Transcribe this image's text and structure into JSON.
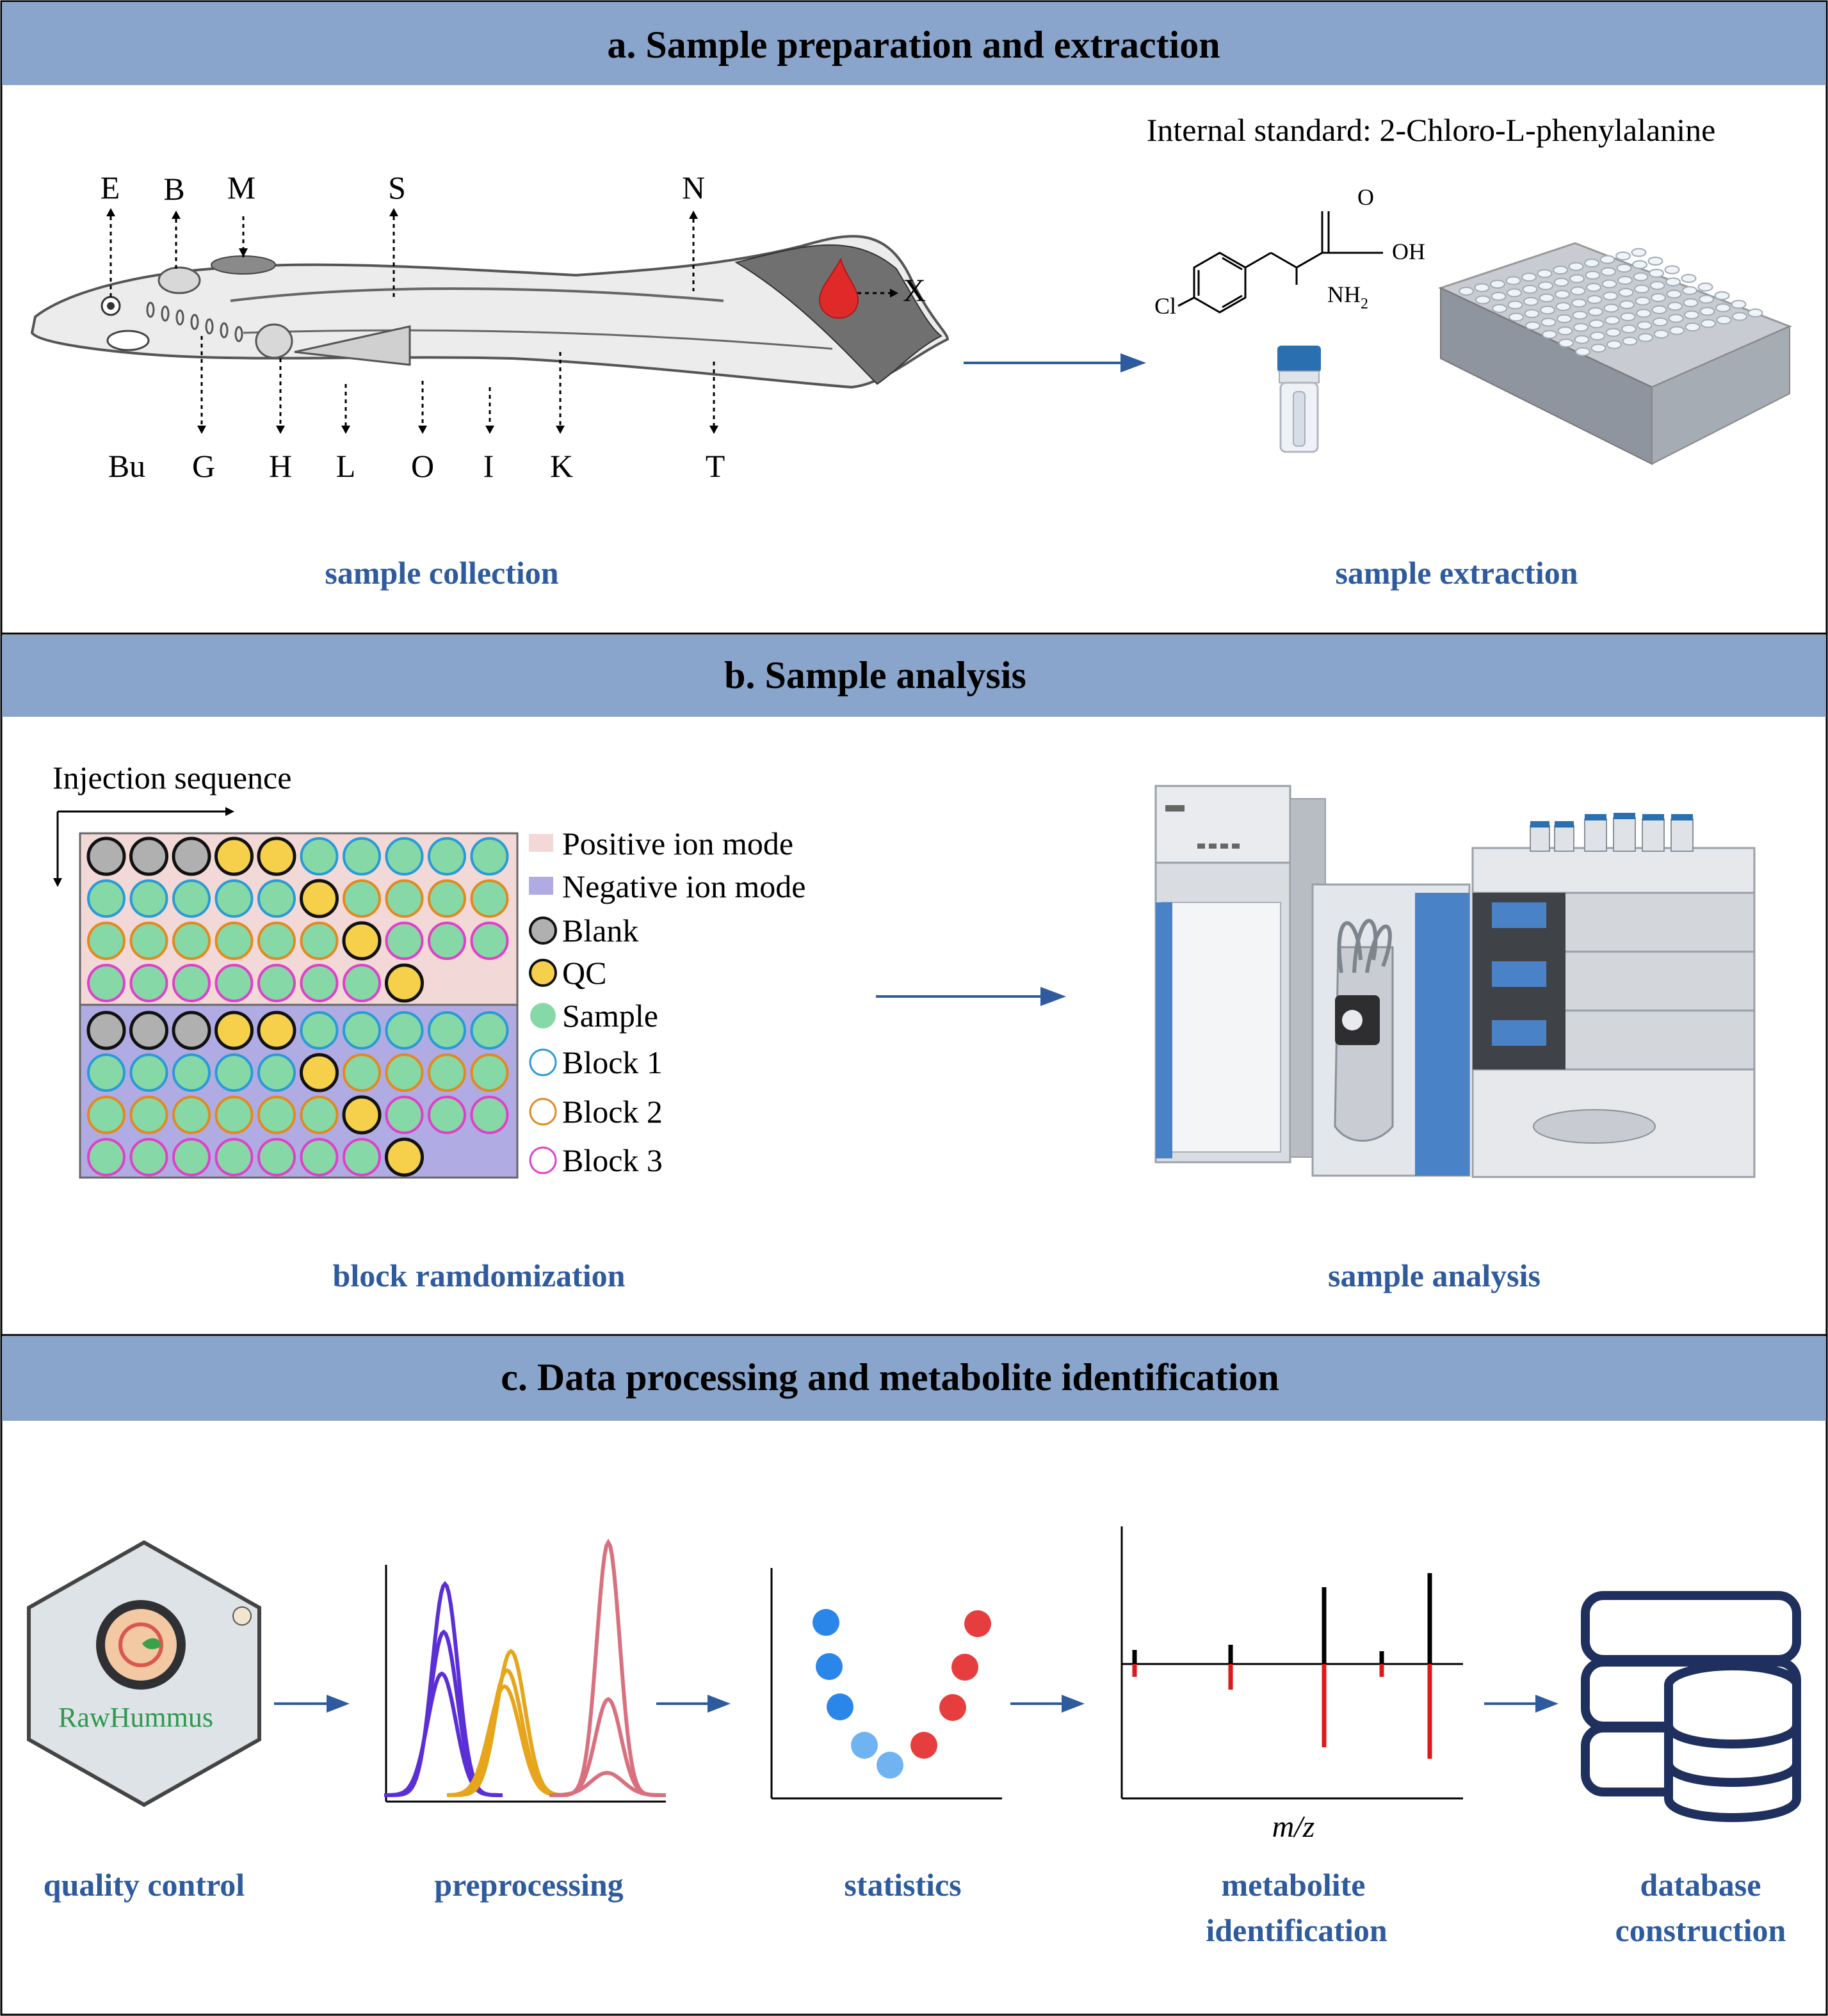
{
  "sections": {
    "a": {
      "title": "a. Sample preparation and extraction",
      "fish_labels_top": [
        "E",
        "B",
        "M",
        "S",
        "N"
      ],
      "fish_labels_bottom": [
        "Bu",
        "G",
        "H",
        "L",
        "O",
        "I",
        "K",
        "T"
      ],
      "blood_label": "X",
      "internal_standard": "Internal standard: 2-Chloro-L-phenylalanine",
      "chem": {
        "cl": "Cl",
        "o": "O",
        "oh": "OH",
        "nh": "NH",
        "nh_sub": "2"
      },
      "caption_left": "sample collection",
      "caption_right": "sample extraction"
    },
    "b": {
      "title": "b. Sample analysis",
      "injection_sequence": "Injection sequence",
      "legend": [
        "Positive ion mode",
        "Negative ion mode",
        "Blank",
        "QC",
        "Sample",
        "Block 1",
        "Block 2",
        "Block 3"
      ],
      "caption_left": "block ramdomization",
      "caption_right": "sample analysis"
    },
    "c": {
      "title": "c. Data processing and metabolite identification",
      "logo_text": "RawHummus",
      "mz_label": "m/z",
      "captions": [
        [
          "quality control"
        ],
        [
          "preprocessing"
        ],
        [
          "statistics"
        ],
        [
          "metabolite",
          "identification"
        ],
        [
          "database",
          "construction"
        ]
      ]
    }
  },
  "colors": {
    "header_band": "#8aa5cc",
    "caption_blue": "#2e5a9e",
    "arrow_blue": "#2e5a9e",
    "positive_bg": "#f3d8d8",
    "negative_bg": "#b0abe3",
    "blank": "#b0b0b0",
    "qc": "#f6d04a",
    "sample": "#86d8a6",
    "block1": "#2a9ad6",
    "block2": "#e08a20",
    "block3": "#e040c8",
    "blood": "#e02a2a"
  },
  "plate_rows": [
    [
      "blank:0",
      "blank:0",
      "blank:0",
      "qc:0",
      "qc:0",
      "sample:1",
      "sample:1",
      "sample:1",
      "sample:1",
      "sample:1"
    ],
    [
      "sample:1",
      "sample:1",
      "sample:1",
      "sample:1",
      "sample:1",
      "qc:0",
      "sample:2",
      "sample:2",
      "sample:2",
      "sample:2"
    ],
    [
      "sample:2",
      "sample:2",
      "sample:2",
      "sample:2",
      "sample:2",
      "sample:2",
      "qc:0",
      "sample:3",
      "sample:3",
      "sample:3"
    ],
    [
      "sample:3",
      "sample:3",
      "sample:3",
      "sample:3",
      "sample:3",
      "sample:3",
      "sample:3",
      "qc:0"
    ]
  ]
}
